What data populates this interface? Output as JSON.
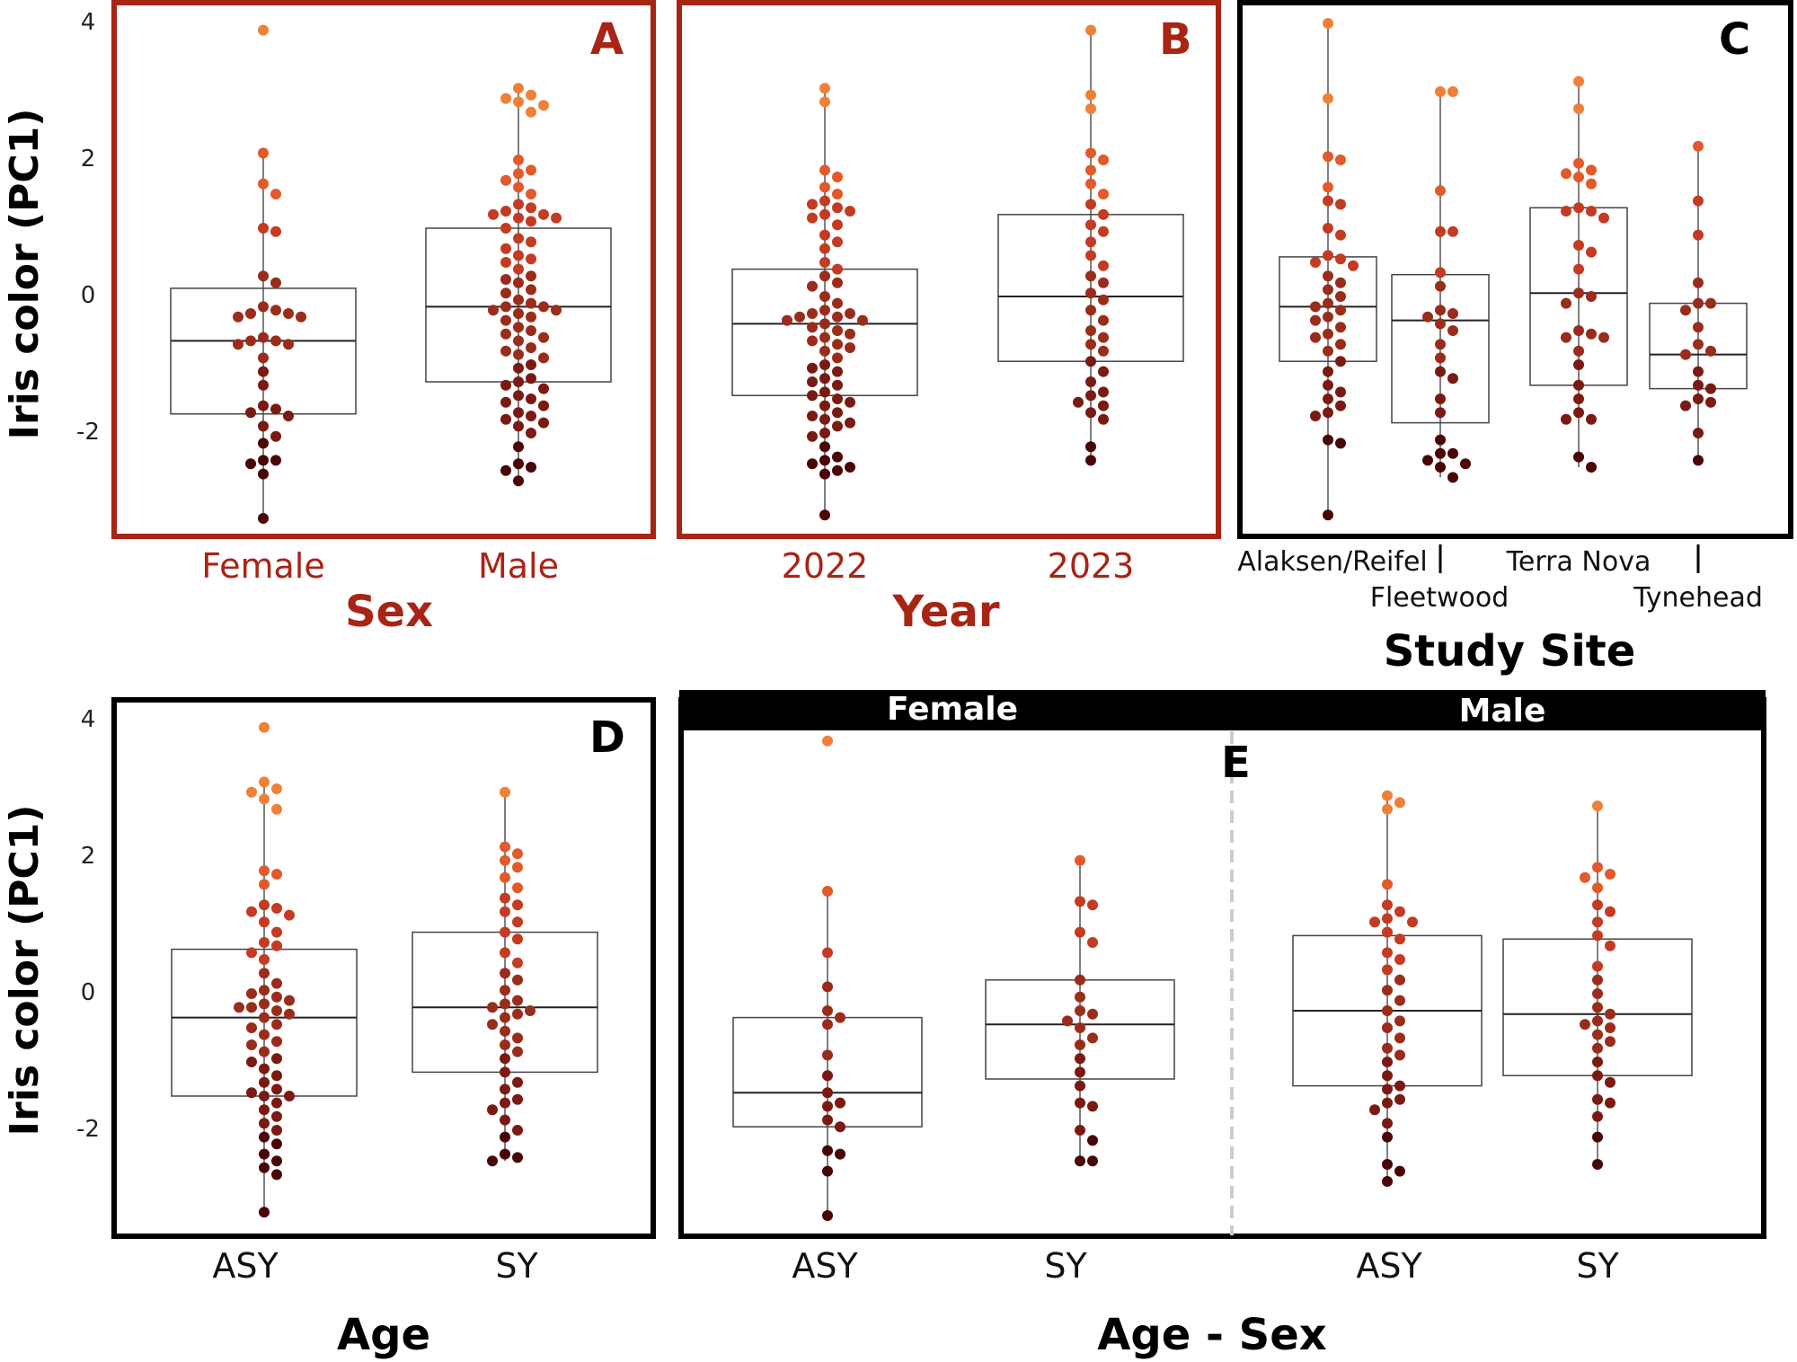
{
  "chart_data": [
    {
      "panel": "A",
      "type": "box+beeswarm",
      "xlabel": "Sex",
      "ylabel": "Iris color (PC1)",
      "yticks": [
        "4",
        "2",
        "0",
        "-2"
      ],
      "ylim": [
        -3.4,
        4.1
      ],
      "categories": [
        {
          "label": "Female",
          "box": {
            "q1": -1.72,
            "median": -0.65,
            "q3": 0.12,
            "min": -3.25,
            "max": 2.1
          },
          "points": [
            3.9,
            2.1,
            1.65,
            1.5,
            1.0,
            0.95,
            0.3,
            0.2,
            -0.15,
            -0.2,
            -0.25,
            -0.25,
            -0.3,
            -0.3,
            -0.6,
            -0.65,
            -0.65,
            -0.7,
            -0.7,
            -0.9,
            -1.1,
            -1.3,
            -1.6,
            -1.65,
            -1.7,
            -1.75,
            -1.9,
            -2.05,
            -2.15,
            -2.4,
            -2.4,
            -2.45,
            -2.6,
            -3.25
          ]
        },
        {
          "label": "Male",
          "box": {
            "q1": -1.25,
            "median": -0.15,
            "q3": 1.0,
            "min": -2.7,
            "max": 3.05
          },
          "points": [
            3.05,
            2.95,
            2.9,
            2.85,
            2.8,
            2.7,
            2.0,
            1.85,
            1.8,
            1.7,
            1.6,
            1.5,
            1.35,
            1.3,
            1.25,
            1.2,
            1.2,
            1.15,
            1.15,
            1.1,
            1.0,
            0.85,
            0.8,
            0.7,
            0.6,
            0.55,
            0.5,
            0.4,
            0.3,
            0.25,
            0.2,
            0.1,
            0.05,
            -0.05,
            -0.1,
            -0.15,
            -0.15,
            -0.2,
            -0.2,
            -0.25,
            -0.3,
            -0.35,
            -0.45,
            -0.5,
            -0.55,
            -0.6,
            -0.65,
            -0.75,
            -0.8,
            -0.85,
            -0.9,
            -1.0,
            -1.05,
            -1.2,
            -1.25,
            -1.3,
            -1.35,
            -1.45,
            -1.5,
            -1.55,
            -1.6,
            -1.7,
            -1.75,
            -1.8,
            -1.85,
            -1.9,
            -2.0,
            -2.2,
            -2.45,
            -2.5,
            -2.55,
            -2.7
          ]
        }
      ]
    },
    {
      "panel": "B",
      "type": "box+beeswarm",
      "xlabel": "Year",
      "ylabel": "",
      "ylim": [
        -3.4,
        4.1
      ],
      "categories": [
        {
          "label": "2022",
          "box": {
            "q1": -1.45,
            "median": -0.4,
            "q3": 0.4,
            "min": -3.2,
            "max": 3.05
          },
          "points": [
            3.05,
            2.85,
            1.85,
            1.75,
            1.6,
            1.5,
            1.4,
            1.35,
            1.3,
            1.25,
            1.2,
            1.15,
            1.05,
            0.9,
            0.8,
            0.7,
            0.5,
            0.4,
            0.3,
            0.2,
            0.15,
            0.0,
            -0.1,
            -0.2,
            -0.25,
            -0.25,
            -0.3,
            -0.3,
            -0.35,
            -0.35,
            -0.4,
            -0.45,
            -0.5,
            -0.55,
            -0.6,
            -0.65,
            -0.7,
            -0.75,
            -0.8,
            -0.9,
            -1.0,
            -1.05,
            -1.1,
            -1.2,
            -1.25,
            -1.3,
            -1.4,
            -1.45,
            -1.5,
            -1.55,
            -1.6,
            -1.7,
            -1.75,
            -1.8,
            -1.85,
            -1.9,
            -2.0,
            -2.05,
            -2.2,
            -2.35,
            -2.4,
            -2.45,
            -2.5,
            -2.55,
            -2.6,
            -3.2
          ]
        },
        {
          "label": "2023",
          "box": {
            "q1": -0.95,
            "median": 0.0,
            "q3": 1.2,
            "min": -2.4,
            "max": 3.9
          },
          "points": [
            3.9,
            2.95,
            2.75,
            2.1,
            2.0,
            1.85,
            1.65,
            1.5,
            1.35,
            1.2,
            1.05,
            0.95,
            0.8,
            0.6,
            0.45,
            0.3,
            0.2,
            0.05,
            -0.05,
            -0.2,
            -0.35,
            -0.5,
            -0.6,
            -0.7,
            -0.8,
            -0.95,
            -1.1,
            -1.25,
            -1.4,
            -1.45,
            -1.55,
            -1.6,
            -1.7,
            -1.8,
            -2.2,
            -2.4
          ]
        }
      ]
    },
    {
      "panel": "C",
      "type": "box+beeswarm",
      "xlabel": "Study Site",
      "ylabel": "",
      "ylim": [
        -3.4,
        4.1
      ],
      "categories": [
        {
          "label": "Alaksen/Reifel",
          "box": {
            "q1": -0.95,
            "median": -0.15,
            "q3": 0.58,
            "min": -3.2,
            "max": 4.0
          },
          "points": [
            4.0,
            2.9,
            2.05,
            2.0,
            1.6,
            1.4,
            1.35,
            1.0,
            0.9,
            0.6,
            0.55,
            0.5,
            0.45,
            0.3,
            0.2,
            0.1,
            0.0,
            -0.1,
            -0.15,
            -0.2,
            -0.3,
            -0.35,
            -0.45,
            -0.55,
            -0.6,
            -0.7,
            -0.8,
            -0.95,
            -1.1,
            -1.3,
            -1.4,
            -1.5,
            -1.6,
            -1.7,
            -1.75,
            -2.1,
            -2.15,
            -3.2
          ]
        },
        {
          "label": "Fleetwood",
          "box": {
            "q1": -1.85,
            "median": -0.35,
            "q3": 0.32,
            "min": -2.65,
            "max": 3.0
          },
          "points": [
            3.0,
            3.0,
            1.55,
            0.95,
            0.95,
            0.35,
            0.15,
            -0.2,
            -0.25,
            -0.3,
            -0.4,
            -0.5,
            -0.7,
            -0.9,
            -1.1,
            -1.2,
            -1.5,
            -1.7,
            -2.1,
            -2.3,
            -2.3,
            -2.4,
            -2.45,
            -2.5,
            -2.65
          ]
        },
        {
          "label": "Terra Nova",
          "box": {
            "q1": -1.3,
            "median": 0.05,
            "q3": 1.3,
            "min": -2.5,
            "max": 3.15
          },
          "points": [
            3.15,
            2.75,
            1.95,
            1.85,
            1.8,
            1.75,
            1.65,
            1.3,
            1.25,
            1.25,
            1.15,
            0.75,
            0.65,
            0.4,
            0.05,
            0.0,
            -0.1,
            -0.5,
            -0.55,
            -0.6,
            -0.6,
            -0.8,
            -1.0,
            -1.3,
            -1.5,
            -1.7,
            -1.8,
            -1.8,
            -2.35,
            -2.5
          ]
        },
        {
          "label": "Tynehead",
          "box": {
            "q1": -1.35,
            "median": -0.85,
            "q3": -0.1,
            "min": -2.4,
            "max": 2.2
          },
          "points": [
            2.2,
            1.4,
            0.9,
            0.2,
            -0.1,
            -0.1,
            -0.2,
            -0.45,
            -0.7,
            -0.8,
            -0.85,
            -1.1,
            -1.3,
            -1.35,
            -1.5,
            -1.55,
            -1.6,
            -2.0,
            -2.4
          ]
        }
      ]
    },
    {
      "panel": "D",
      "type": "box+beeswarm",
      "xlabel": "Age",
      "ylabel": "Iris color (PC1)",
      "yticks": [
        "4",
        "2",
        "0",
        "-2"
      ],
      "ylim": [
        -3.4,
        4.1
      ],
      "categories": [
        {
          "label": "ASY",
          "box": {
            "q1": -1.5,
            "median": -0.35,
            "q3": 0.65,
            "min": -3.2,
            "max": 3.1
          },
          "points": [
            3.9,
            3.1,
            3.0,
            2.95,
            2.85,
            2.7,
            1.8,
            1.75,
            1.6,
            1.3,
            1.25,
            1.2,
            1.15,
            1.05,
            0.9,
            0.75,
            0.7,
            0.6,
            0.5,
            0.3,
            0.15,
            0.05,
            0.0,
            -0.05,
            -0.1,
            -0.15,
            -0.2,
            -0.2,
            -0.25,
            -0.3,
            -0.35,
            -0.45,
            -0.5,
            -0.6,
            -0.7,
            -0.75,
            -0.85,
            -0.95,
            -1.0,
            -1.1,
            -1.2,
            -1.3,
            -1.4,
            -1.45,
            -1.5,
            -1.5,
            -1.6,
            -1.7,
            -1.8,
            -1.9,
            -2.0,
            -2.1,
            -2.2,
            -2.35,
            -2.45,
            -2.55,
            -2.65,
            -3.2
          ]
        },
        {
          "label": "SY",
          "box": {
            "q1": -1.15,
            "median": -0.2,
            "q3": 0.9,
            "min": -2.45,
            "max": 2.95
          },
          "points": [
            2.95,
            2.15,
            2.05,
            1.95,
            1.85,
            1.7,
            1.55,
            1.4,
            1.3,
            1.2,
            1.05,
            0.9,
            0.8,
            0.6,
            0.45,
            0.3,
            0.2,
            0.05,
            -0.1,
            -0.15,
            -0.2,
            -0.25,
            -0.3,
            -0.35,
            -0.45,
            -0.55,
            -0.65,
            -0.75,
            -0.85,
            -0.95,
            -1.15,
            -1.3,
            -1.4,
            -1.55,
            -1.6,
            -1.7,
            -1.85,
            -2.0,
            -2.1,
            -2.35,
            -2.4,
            -2.45
          ]
        }
      ]
    },
    {
      "panel": "E",
      "type": "box+beeswarm",
      "xlabel": "Age - Sex",
      "ylabel": "",
      "facets": [
        "Female",
        "Male"
      ],
      "ylim": [
        -3.4,
        4.1
      ],
      "categories": [
        {
          "label": "ASY",
          "facet": "Female",
          "box": {
            "q1": -1.95,
            "median": -1.45,
            "q3": -0.35,
            "min": -3.25,
            "max": 1.5
          },
          "points": [
            3.7,
            1.5,
            0.6,
            0.1,
            -0.25,
            -0.35,
            -0.45,
            -0.9,
            -1.2,
            -1.45,
            -1.6,
            -1.65,
            -1.85,
            -1.95,
            -2.3,
            -2.35,
            -2.6,
            -3.25
          ]
        },
        {
          "label": "SY",
          "facet": "Female",
          "box": {
            "q1": -1.25,
            "median": -0.45,
            "q3": 0.2,
            "min": -2.45,
            "max": 1.95
          },
          "points": [
            1.95,
            1.35,
            1.3,
            0.9,
            0.75,
            0.2,
            -0.05,
            -0.25,
            -0.3,
            -0.4,
            -0.5,
            -0.65,
            -0.75,
            -0.95,
            -1.15,
            -1.35,
            -1.6,
            -1.65,
            -2.0,
            -2.15,
            -2.45,
            -2.45
          ]
        },
        {
          "label": "ASY",
          "facet": "Male",
          "box": {
            "q1": -1.35,
            "median": -0.25,
            "q3": 0.85,
            "min": -2.75,
            "max": 2.9
          },
          "points": [
            2.9,
            2.8,
            2.7,
            1.6,
            1.3,
            1.2,
            1.1,
            1.05,
            1.05,
            0.9,
            0.8,
            0.6,
            0.5,
            0.35,
            0.2,
            0.05,
            -0.1,
            -0.25,
            -0.4,
            -0.5,
            -0.65,
            -0.8,
            -0.9,
            -1.0,
            -1.2,
            -1.35,
            -1.4,
            -1.55,
            -1.6,
            -1.7,
            -1.9,
            -2.1,
            -2.5,
            -2.6,
            -2.75
          ]
        },
        {
          "label": "SY",
          "facet": "Male",
          "box": {
            "q1": -1.2,
            "median": -0.3,
            "q3": 0.8,
            "min": -2.5,
            "max": 2.75
          },
          "points": [
            2.75,
            1.85,
            1.75,
            1.7,
            1.55,
            1.3,
            1.2,
            1.05,
            0.85,
            0.7,
            0.4,
            0.2,
            0.0,
            -0.2,
            -0.3,
            -0.4,
            -0.45,
            -0.5,
            -0.6,
            -0.7,
            -0.8,
            -1.0,
            -1.2,
            -1.3,
            -1.55,
            -1.6,
            -1.8,
            -2.1,
            -2.5
          ]
        }
      ]
    }
  ],
  "panel_letters": {
    "A": "A",
    "B": "B",
    "C": "C",
    "D": "D",
    "E": "E"
  },
  "colors": {
    "highlight": "#a82414",
    "dark": "#000000",
    "box_line": "#444444",
    "guide": "#cccccc",
    "point_ramp": [
      "#4a0507",
      "#7a1a12",
      "#9a2c1c",
      "#c43a22",
      "#e25a2a",
      "#f08038"
    ]
  }
}
